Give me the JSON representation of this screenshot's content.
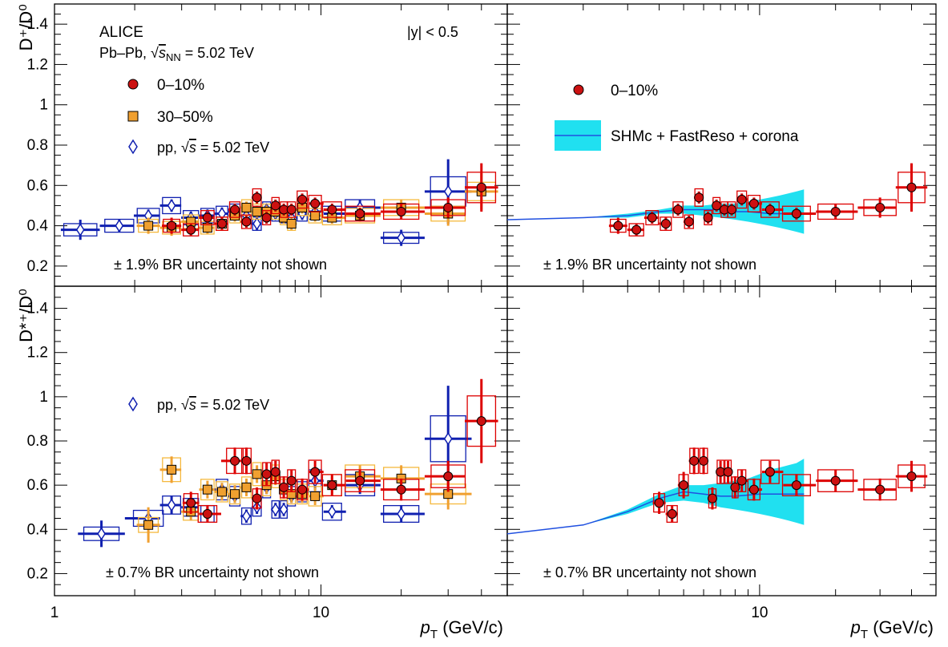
{
  "figure": {
    "experiment": "ALICE",
    "system_prefix": "Pb–Pb, ",
    "sqrt_symbol": "√",
    "snn_s": "s",
    "snn_sub": "NN",
    "energy_text": " = 5.02 TeV",
    "rapidity_text": "|y| < 0.5",
    "br_top": "± 1.9% BR uncertainty not shown",
    "br_bottom": "± 0.7% BR uncertainty not shown",
    "ylabel_top": "D⁺/D⁰",
    "ylabel_bottom": "D*⁺/D⁰",
    "xlabel_p": "p",
    "xlabel_sub": "T",
    "xlabel_unit": " (GeV/c)",
    "legend": {
      "central": "0–10%",
      "semi": "30–50%",
      "pp_prefix": "pp, ",
      "pp_s": "s",
      "pp_energy": " = 5.02 TeV",
      "model": "SHMc + FastReso + corona"
    },
    "colors": {
      "central": "#dd0000",
      "central_marker": "#cc1111",
      "semi": "#f0a030",
      "semi_box": "#f5b93e",
      "pp": "#1020b0",
      "model_band": "#20e0f0",
      "model_line": "#2050e0"
    }
  },
  "chart_data": [
    {
      "panel": "top-left",
      "type": "scatter",
      "xscale": "log",
      "xlim": [
        1,
        50
      ],
      "ylim": [
        0.1,
        1.5
      ],
      "xticks": [
        1,
        10
      ],
      "yticks": [
        0.2,
        0.4,
        0.6,
        0.8,
        1.0,
        1.2,
        1.4
      ],
      "series": [
        {
          "name": "pp",
          "marker": "diamond-open",
          "x": [
            1.25,
            1.75,
            2.25,
            2.75,
            3.25,
            3.75,
            4.25,
            4.75,
            5.25,
            5.75,
            6.25,
            6.75,
            7.25,
            7.75,
            8.5,
            9.5,
            11,
            14,
            20,
            30
          ],
          "y": [
            0.38,
            0.4,
            0.45,
            0.5,
            0.44,
            0.45,
            0.46,
            0.47,
            0.45,
            0.41,
            0.48,
            0.46,
            0.45,
            0.44,
            0.46,
            0.47,
            0.46,
            0.49,
            0.34,
            0.57
          ],
          "err": [
            0.05,
            0.03,
            0.03,
            0.03,
            0.03,
            0.03,
            0.03,
            0.03,
            0.03,
            0.03,
            0.03,
            0.03,
            0.03,
            0.03,
            0.03,
            0.03,
            0.03,
            0.04,
            0.04,
            0.16
          ]
        },
        {
          "name": "30–50%",
          "marker": "square",
          "x": [
            2.25,
            2.75,
            3.25,
            3.75,
            4.25,
            4.75,
            5.25,
            5.75,
            6.25,
            6.75,
            7.25,
            7.75,
            8.5,
            9.5,
            11,
            14,
            20,
            30,
            40
          ],
          "y": [
            0.4,
            0.39,
            0.42,
            0.39,
            0.41,
            0.45,
            0.49,
            0.47,
            0.47,
            0.47,
            0.44,
            0.41,
            0.49,
            0.45,
            0.44,
            0.45,
            0.49,
            0.46,
            0.57
          ],
          "err": [
            0.04,
            0.04,
            0.03,
            0.03,
            0.03,
            0.03,
            0.03,
            0.03,
            0.03,
            0.03,
            0.03,
            0.03,
            0.03,
            0.03,
            0.03,
            0.03,
            0.04,
            0.06,
            0.09
          ]
        },
        {
          "name": "0–10%",
          "marker": "circle",
          "x": [
            2.75,
            3.25,
            3.75,
            4.25,
            4.75,
            5.25,
            5.75,
            6.25,
            6.75,
            7.25,
            7.75,
            8.5,
            9.5,
            11,
            14,
            20,
            30,
            40
          ],
          "y": [
            0.4,
            0.38,
            0.44,
            0.41,
            0.48,
            0.42,
            0.54,
            0.44,
            0.5,
            0.48,
            0.48,
            0.53,
            0.51,
            0.48,
            0.46,
            0.47,
            0.49,
            0.59
          ],
          "err": [
            0.04,
            0.03,
            0.03,
            0.03,
            0.03,
            0.03,
            0.03,
            0.03,
            0.03,
            0.03,
            0.03,
            0.03,
            0.03,
            0.03,
            0.03,
            0.04,
            0.05,
            0.12
          ]
        }
      ]
    },
    {
      "panel": "top-right",
      "type": "scatter",
      "xscale": "log",
      "xlim": [
        1,
        50
      ],
      "ylim": [
        0.1,
        1.5
      ],
      "xticks": [
        1,
        10
      ],
      "yticks": [
        0.2,
        0.4,
        0.6,
        0.8,
        1.0,
        1.2,
        1.4
      ],
      "series": [
        {
          "name": "0–10%",
          "marker": "circle",
          "x": [
            2.75,
            3.25,
            3.75,
            4.25,
            4.75,
            5.25,
            5.75,
            6.25,
            6.75,
            7.25,
            7.75,
            8.5,
            9.5,
            11,
            14,
            20,
            30,
            40
          ],
          "y": [
            0.4,
            0.38,
            0.44,
            0.41,
            0.48,
            0.42,
            0.54,
            0.44,
            0.5,
            0.48,
            0.48,
            0.53,
            0.51,
            0.48,
            0.46,
            0.47,
            0.49,
            0.59
          ],
          "err": [
            0.04,
            0.03,
            0.03,
            0.03,
            0.03,
            0.03,
            0.03,
            0.03,
            0.03,
            0.03,
            0.03,
            0.03,
            0.03,
            0.03,
            0.03,
            0.04,
            0.05,
            0.12
          ]
        },
        {
          "name": "SHMc + FastReso + corona",
          "type": "band",
          "x": [
            1,
            2,
            3,
            4,
            5,
            6,
            7,
            8,
            9,
            10,
            11,
            12,
            13,
            14,
            15
          ],
          "y": [
            0.43,
            0.44,
            0.45,
            0.47,
            0.48,
            0.48,
            0.48,
            0.47,
            0.47,
            0.465,
            0.46,
            0.46,
            0.46,
            0.46,
            0.46
          ],
          "low": [
            0.43,
            0.44,
            0.44,
            0.46,
            0.46,
            0.45,
            0.44,
            0.43,
            0.42,
            0.41,
            0.4,
            0.39,
            0.38,
            0.37,
            0.36
          ],
          "high": [
            0.43,
            0.44,
            0.46,
            0.48,
            0.5,
            0.5,
            0.51,
            0.51,
            0.52,
            0.53,
            0.54,
            0.55,
            0.56,
            0.57,
            0.58
          ]
        }
      ]
    },
    {
      "panel": "bottom-left",
      "type": "scatter",
      "xscale": "log",
      "xlim": [
        1,
        50
      ],
      "ylim": [
        0.1,
        1.5
      ],
      "xticks": [
        1,
        10
      ],
      "yticks": [
        0.2,
        0.4,
        0.6,
        0.8,
        1.0,
        1.2,
        1.4
      ],
      "series": [
        {
          "name": "pp",
          "marker": "diamond-open",
          "x": [
            1.5,
            2.25,
            2.75,
            3.25,
            3.75,
            4.25,
            4.75,
            5.25,
            5.75,
            6.25,
            6.75,
            7.25,
            7.75,
            8.5,
            9.5,
            11,
            14,
            20,
            30
          ],
          "y": [
            0.38,
            0.45,
            0.51,
            0.5,
            0.47,
            0.58,
            0.55,
            0.46,
            0.5,
            0.59,
            0.49,
            0.49,
            0.55,
            0.57,
            0.62,
            0.48,
            0.6,
            0.47,
            0.81
          ],
          "err": [
            0.06,
            0.03,
            0.04,
            0.04,
            0.03,
            0.03,
            0.03,
            0.03,
            0.03,
            0.03,
            0.03,
            0.03,
            0.03,
            0.03,
            0.04,
            0.03,
            0.04,
            0.04,
            0.24
          ]
        },
        {
          "name": "30–50%",
          "marker": "square",
          "x": [
            2.25,
            2.75,
            3.25,
            3.75,
            4.25,
            4.75,
            5.25,
            5.75,
            6.25,
            6.75,
            7.25,
            7.75,
            8.5,
            9.5,
            11,
            14,
            20,
            30
          ],
          "y": [
            0.42,
            0.67,
            0.48,
            0.58,
            0.57,
            0.56,
            0.59,
            0.65,
            0.6,
            0.64,
            0.58,
            0.56,
            0.56,
            0.55,
            0.6,
            0.64,
            0.63,
            0.56
          ],
          "err": [
            0.08,
            0.06,
            0.04,
            0.04,
            0.04,
            0.04,
            0.04,
            0.04,
            0.04,
            0.04,
            0.04,
            0.04,
            0.04,
            0.04,
            0.04,
            0.05,
            0.06,
            0.07
          ]
        },
        {
          "name": "0–10%",
          "marker": "circle",
          "x": [
            3.25,
            3.75,
            4.75,
            5.25,
            5.75,
            6.25,
            6.75,
            7.25,
            7.75,
            8.5,
            9.5,
            11,
            14,
            20,
            30,
            40
          ],
          "y": [
            0.52,
            0.47,
            0.71,
            0.71,
            0.54,
            0.65,
            0.66,
            0.59,
            0.62,
            0.58,
            0.66,
            0.6,
            0.62,
            0.58,
            0.64,
            0.89
          ],
          "err": [
            0.05,
            0.04,
            0.06,
            0.06,
            0.05,
            0.05,
            0.05,
            0.05,
            0.05,
            0.05,
            0.05,
            0.05,
            0.05,
            0.05,
            0.07,
            0.19
          ]
        }
      ]
    },
    {
      "panel": "bottom-right",
      "type": "scatter",
      "xscale": "log",
      "xlim": [
        1,
        50
      ],
      "ylim": [
        0.1,
        1.5
      ],
      "xticks": [
        1,
        10
      ],
      "yticks": [
        0.2,
        0.4,
        0.6,
        0.8,
        1.0,
        1.2,
        1.4
      ],
      "series": [
        {
          "name": "0–10%",
          "marker": "circle",
          "x": [
            4.0,
            4.5,
            5.0,
            5.5,
            6.0,
            6.5,
            7.0,
            7.5,
            8.0,
            8.5,
            9.5,
            11,
            14,
            20,
            30,
            40
          ],
          "y": [
            0.52,
            0.47,
            0.6,
            0.71,
            0.71,
            0.54,
            0.66,
            0.66,
            0.59,
            0.62,
            0.58,
            0.66,
            0.6,
            0.62,
            0.58,
            0.64
          ],
          "err": [
            0.05,
            0.04,
            0.06,
            0.06,
            0.06,
            0.05,
            0.05,
            0.05,
            0.05,
            0.05,
            0.05,
            0.05,
            0.05,
            0.05,
            0.05,
            0.07
          ]
        },
        {
          "name": "SHMc + FastReso + corona",
          "type": "band",
          "x": [
            1,
            2,
            3,
            4,
            5,
            6,
            7,
            8,
            9,
            10,
            11,
            12,
            13,
            14,
            15
          ],
          "y": [
            0.38,
            0.42,
            0.48,
            0.54,
            0.57,
            0.56,
            0.55,
            0.55,
            0.555,
            0.56,
            0.56,
            0.56,
            0.56,
            0.56,
            0.56
          ],
          "low": [
            0.38,
            0.42,
            0.47,
            0.52,
            0.53,
            0.52,
            0.5,
            0.49,
            0.48,
            0.47,
            0.46,
            0.45,
            0.44,
            0.43,
            0.42
          ],
          "high": [
            0.38,
            0.42,
            0.49,
            0.56,
            0.6,
            0.6,
            0.61,
            0.62,
            0.63,
            0.65,
            0.67,
            0.68,
            0.69,
            0.7,
            0.72
          ]
        }
      ]
    }
  ]
}
